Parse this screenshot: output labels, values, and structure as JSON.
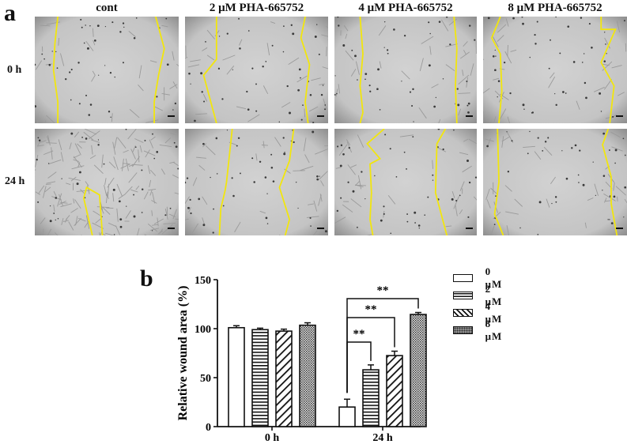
{
  "figure": {
    "panel_a": {
      "letter": "a",
      "columns": [
        "cont",
        "2 μM PHA-665752",
        "4 μM PHA-665752",
        "8 μM PHA-665752"
      ],
      "rows": [
        "0 h",
        "24 h"
      ],
      "wound_edge_color": "#f2e60d",
      "scale_bar_color": "#111111",
      "image_background": "#c9c9c9"
    },
    "panel_b": {
      "letter": "b",
      "legend": [
        "0 μM",
        "2 μM",
        "4 μM",
        "8 μM"
      ]
    }
  },
  "chart_data": {
    "type": "bar",
    "title": "",
    "xlabel": "",
    "ylabel": "Relative wound area (%)",
    "categories": [
      "0 h",
      "24 h"
    ],
    "series": [
      {
        "name": "0 μM",
        "pattern": "open",
        "values": [
          101,
          20
        ],
        "errors": [
          2,
          8
        ]
      },
      {
        "name": "2 μM",
        "pattern": "horizontal-lines",
        "values": [
          99,
          58
        ],
        "errors": [
          1.5,
          5
        ]
      },
      {
        "name": "4 μM",
        "pattern": "diagonal-lines",
        "values": [
          97.5,
          72.5
        ],
        "errors": [
          2,
          4.5
        ]
      },
      {
        "name": "8 μM",
        "pattern": "crosshatch-dots",
        "values": [
          103.5,
          114.5
        ],
        "errors": [
          2.5,
          2
        ]
      }
    ],
    "ylim": [
      0,
      150
    ],
    "yticks": [
      0,
      50,
      100,
      150
    ],
    "grid": false,
    "legend_position": "right",
    "annotations": [
      {
        "group": "24 h",
        "from": "0 μM",
        "to": "2 μM",
        "label": "**"
      },
      {
        "group": "24 h",
        "from": "0 μM",
        "to": "4 μM",
        "label": "**"
      },
      {
        "group": "24 h",
        "from": "0 μM",
        "to": "8 μM",
        "label": "**"
      }
    ]
  }
}
